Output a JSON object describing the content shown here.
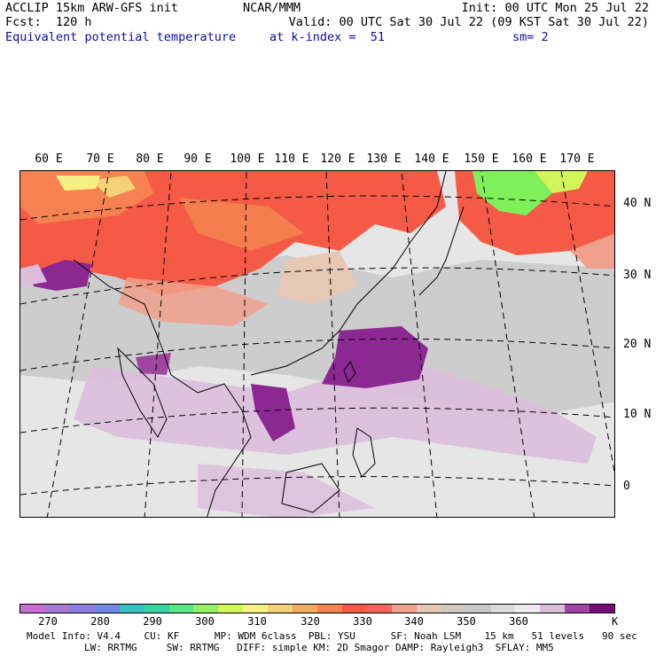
{
  "header": {
    "line1_left": "ACCLIP 15km ARW-GFS init",
    "line1_center": "NCAR/MMM",
    "line1_right": "Init: 00 UTC Mon 25 Jul 22",
    "line2_left": "Fcst:  120 h",
    "line2_right": "Valid: 00 UTC Sat 30 Jul 22 (09 KST Sat 30 Jul 22)",
    "line3_field": "Equivalent potential temperature",
    "line3_level": "at k-index =  51",
    "line3_smooth": "sm= 2"
  },
  "map": {
    "longitude_labels": [
      "60 E",
      "70 E",
      "80 E",
      "90 E",
      "100 E",
      "110 E",
      "120 E",
      "130 E",
      "140 E",
      "150 E",
      "160 E",
      "170 E"
    ],
    "latitude_labels": [
      "40 N",
      "30 N",
      "20 N",
      "10 N",
      "0"
    ]
  },
  "colorbar": {
    "unit": "K",
    "tick_labels": [
      "270",
      "280",
      "290",
      "300",
      "310",
      "320",
      "330",
      "340",
      "350",
      "360"
    ],
    "colors": [
      "#c86ed2",
      "#a878d8",
      "#8c7ee0",
      "#6e8ae6",
      "#3cc0c8",
      "#3cd2a0",
      "#5ae682",
      "#96f064",
      "#d2f55a",
      "#f5f082",
      "#f5d278",
      "#f5aa64",
      "#f58250",
      "#f55a46",
      "#f5645a",
      "#f0a08c",
      "#e6c8b4",
      "#d2c8c3",
      "#c8c8c8",
      "#dcdcdc",
      "#ebebeb",
      "#dcbedc",
      "#a046a0",
      "#780a78"
    ],
    "domain_colors": {
      "red_warm": "#f55a46",
      "orange": "#f58250",
      "yellow": "#f5f082",
      "green": "#7ef05a",
      "gray": "#c8c8c8",
      "light_gray": "#e6e6e6",
      "lavender": "#dcbedc",
      "purple": "#8c2891"
    }
  },
  "footer": {
    "line1": "Model Info: V4.4    CU: KF      MP: WDM 6class  PBL: YSU      SF: Noah LSM    15 km   51 levels   90 sec",
    "line2": "LW: RRTMG     SW: RRTMG   DIFF: simple KM: 2D Smagor DAMP: Rayleigh3  SFLAY: MM5"
  }
}
